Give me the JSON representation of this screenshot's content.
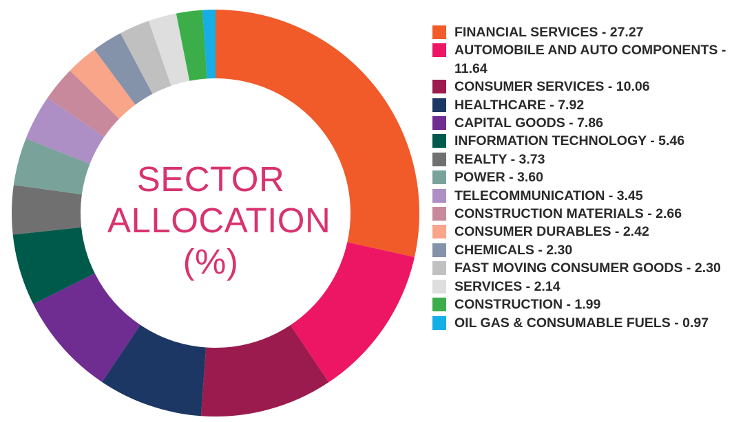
{
  "chart_data": {
    "type": "pie",
    "donut": true,
    "title": [
      "SECTOR",
      "ALLOCATION",
      "(%)"
    ],
    "title_color": "#d8336e",
    "legend_position": "right",
    "slices": [
      {
        "label": "FINANCIAL SERVICES",
        "value": 27.27,
        "display": "27.27",
        "color": "#f15a29"
      },
      {
        "label": "AUTOMOBILE AND AUTO COMPONENTS",
        "value": 11.64,
        "display": "11.64",
        "color": "#ec1664"
      },
      {
        "label": "CONSUMER SERVICES",
        "value": 10.06,
        "display": "10.06",
        "color": "#9b1b4f"
      },
      {
        "label": "HEALTHCARE",
        "value": 7.92,
        "display": "7.92",
        "color": "#1c3764"
      },
      {
        "label": "CAPITAL GOODS",
        "value": 7.86,
        "display": "7.86",
        "color": "#6f2c91"
      },
      {
        "label": "INFORMATION TECHNOLOGY",
        "value": 5.46,
        "display": "5.46",
        "color": "#005a4c"
      },
      {
        "label": "REALTY",
        "value": 3.73,
        "display": "3.73",
        "color": "#707070"
      },
      {
        "label": "POWER",
        "value": 3.6,
        "display": "3.60",
        "color": "#79a39a"
      },
      {
        "label": "TELECOMMUNICATION",
        "value": 3.45,
        "display": "3.45",
        "color": "#ad8fc6"
      },
      {
        "label": "CONSTRUCTION MATERIALS",
        "value": 2.66,
        "display": "2.66",
        "color": "#c7899b"
      },
      {
        "label": "CONSUMER DURABLES",
        "value": 2.42,
        "display": "2.42",
        "color": "#f8a58a"
      },
      {
        "label": "CHEMICALS",
        "value": 2.3,
        "display": "2.30",
        "color": "#8492aa"
      },
      {
        "label": "FAST MOVING CONSUMER GOODS",
        "value": 2.3,
        "display": "2.30",
        "color": "#c0c0c0"
      },
      {
        "label": "SERVICES",
        "value": 2.14,
        "display": "2.14",
        "color": "#dedede"
      },
      {
        "label": "CONSTRUCTION",
        "value": 1.99,
        "display": "1.99",
        "color": "#3bae4a"
      },
      {
        "label": "OIL GAS & CONSUMABLE FUELS",
        "value": 0.97,
        "display": "0.97",
        "color": "#15aee7"
      }
    ]
  }
}
